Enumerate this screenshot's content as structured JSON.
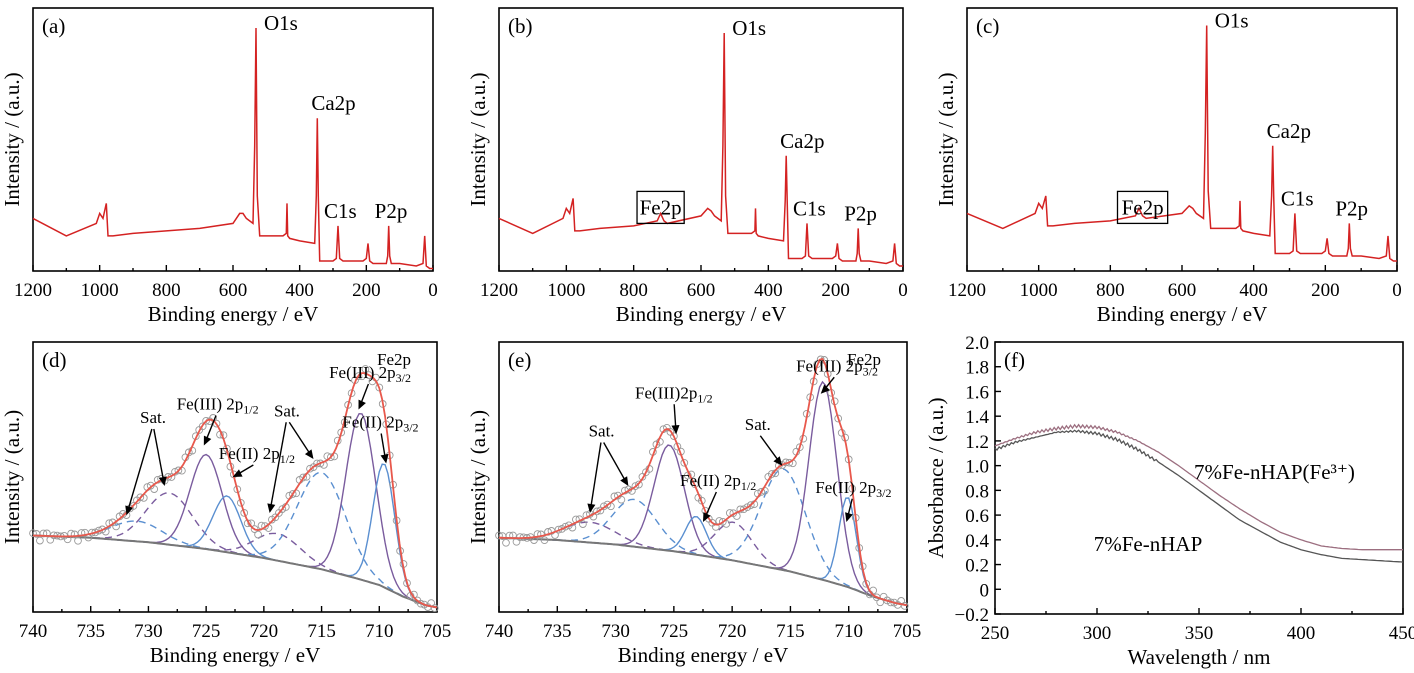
{
  "colors": {
    "survey": "#d42222",
    "envelope": "#e8584c",
    "background": "#777777",
    "fe3_peak": "#7a5c9e",
    "fe2_peak": "#5a8fd0",
    "sat_peak": "#7a5c9e",
    "sat_peak_alt": "#5a8fd0",
    "markers": "#999999",
    "uv_fe3": "#9c6f80",
    "uv_plain": "#555555"
  },
  "chart_data": [
    {
      "id": "a",
      "type": "line",
      "panel_label": "(a)",
      "xlabel": "Binding energy / eV",
      "ylabel": "Intensity / (a.u.)",
      "xlim": [
        1200,
        0
      ],
      "xticks": [
        1200,
        1000,
        800,
        600,
        400,
        200,
        0
      ],
      "ylim": [
        0,
        1.05
      ],
      "peaks": [
        {
          "label": "O1s",
          "x": 531,
          "y": 0.97
        },
        {
          "label": "Ca2p",
          "x": 347,
          "y": 0.61
        },
        {
          "label": "C1s",
          "x": 285,
          "y": 0.18
        },
        {
          "label": "P2p",
          "x": 133,
          "y": 0.18
        }
      ],
      "highlight": null,
      "series": [
        {
          "x": [
            1200,
            1100,
            1010,
            1000,
            990,
            980,
            975,
            960,
            900,
            800,
            700,
            600,
            580,
            570,
            560,
            540,
            535,
            531,
            527,
            520,
            450,
            440,
            438,
            436,
            430,
            400,
            355,
            350,
            347,
            344,
            340,
            300,
            290,
            285,
            280,
            270,
            210,
            200,
            195,
            190,
            180,
            140,
            136,
            133,
            130,
            125,
            100,
            50,
            30,
            25,
            20,
            10,
            0
          ],
          "y": [
            0.21,
            0.14,
            0.19,
            0.23,
            0.21,
            0.27,
            0.14,
            0.14,
            0.15,
            0.16,
            0.17,
            0.19,
            0.23,
            0.23,
            0.21,
            0.19,
            0.5,
            0.97,
            0.3,
            0.14,
            0.14,
            0.15,
            0.27,
            0.14,
            0.13,
            0.12,
            0.11,
            0.3,
            0.61,
            0.3,
            0.04,
            0.04,
            0.05,
            0.18,
            0.05,
            0.04,
            0.04,
            0.05,
            0.11,
            0.04,
            0.03,
            0.03,
            0.06,
            0.18,
            0.06,
            0.03,
            0.03,
            0.02,
            0.03,
            0.14,
            0.02,
            0.01,
            0.01
          ]
        }
      ]
    },
    {
      "id": "b",
      "type": "line",
      "panel_label": "(b)",
      "xlabel": "Binding energy / eV",
      "ylabel": "Intensity / (a.u.)",
      "xlim": [
        1200,
        0
      ],
      "xticks": [
        1200,
        1000,
        800,
        600,
        400,
        200,
        0
      ],
      "ylim": [
        0,
        1.05
      ],
      "peaks": [
        {
          "label": "O1s",
          "x": 531,
          "y": 0.95
        },
        {
          "label": "Ca2p",
          "x": 347,
          "y": 0.46
        },
        {
          "label": "C1s",
          "x": 285,
          "y": 0.19
        },
        {
          "label": "P2p",
          "x": 133,
          "y": 0.17
        }
      ],
      "highlight": {
        "label": "Fe2p",
        "x_range": [
          790,
          650
        ]
      },
      "series": [
        {
          "x": [
            1200,
            1100,
            1010,
            1000,
            990,
            980,
            975,
            960,
            900,
            800,
            730,
            720,
            710,
            700,
            600,
            580,
            570,
            560,
            540,
            535,
            531,
            527,
            520,
            450,
            440,
            438,
            436,
            430,
            400,
            355,
            350,
            347,
            344,
            340,
            300,
            290,
            285,
            280,
            270,
            210,
            200,
            195,
            190,
            180,
            140,
            136,
            133,
            130,
            125,
            100,
            50,
            30,
            25,
            20,
            10,
            0
          ],
          "y": [
            0.21,
            0.15,
            0.21,
            0.25,
            0.23,
            0.29,
            0.16,
            0.16,
            0.17,
            0.18,
            0.2,
            0.23,
            0.2,
            0.19,
            0.22,
            0.25,
            0.24,
            0.22,
            0.2,
            0.5,
            0.95,
            0.3,
            0.15,
            0.15,
            0.16,
            0.25,
            0.15,
            0.14,
            0.13,
            0.12,
            0.28,
            0.46,
            0.28,
            0.05,
            0.05,
            0.06,
            0.19,
            0.06,
            0.05,
            0.05,
            0.06,
            0.11,
            0.05,
            0.04,
            0.04,
            0.07,
            0.17,
            0.07,
            0.04,
            0.04,
            0.03,
            0.04,
            0.11,
            0.03,
            0.02,
            0.02
          ]
        }
      ]
    },
    {
      "id": "c",
      "type": "line",
      "panel_label": "(c)",
      "xlabel": "Binding energy / eV",
      "ylabel": "Intensity / (a.u.)",
      "xlim": [
        1200,
        0
      ],
      "xticks": [
        1200,
        1000,
        800,
        600,
        400,
        200,
        0
      ],
      "ylim": [
        0,
        1.05
      ],
      "peaks": [
        {
          "label": "O1s",
          "x": 531,
          "y": 0.98
        },
        {
          "label": "Ca2p",
          "x": 347,
          "y": 0.5
        },
        {
          "label": "C1s",
          "x": 285,
          "y": 0.23
        },
        {
          "label": "P2p",
          "x": 133,
          "y": 0.19
        }
      ],
      "highlight": {
        "label": "Fe2p",
        "x_range": [
          780,
          640
        ]
      },
      "series": [
        {
          "x": [
            1200,
            1100,
            1010,
            1000,
            990,
            980,
            975,
            960,
            900,
            800,
            730,
            720,
            710,
            700,
            600,
            580,
            570,
            560,
            540,
            535,
            531,
            527,
            520,
            450,
            440,
            438,
            436,
            430,
            400,
            355,
            350,
            347,
            344,
            340,
            300,
            290,
            285,
            280,
            270,
            210,
            200,
            195,
            190,
            180,
            140,
            136,
            133,
            130,
            125,
            100,
            50,
            30,
            25,
            20,
            10,
            0
          ],
          "y": [
            0.23,
            0.17,
            0.23,
            0.27,
            0.25,
            0.3,
            0.18,
            0.18,
            0.19,
            0.2,
            0.22,
            0.25,
            0.22,
            0.21,
            0.23,
            0.26,
            0.25,
            0.23,
            0.21,
            0.55,
            0.98,
            0.32,
            0.17,
            0.17,
            0.18,
            0.28,
            0.17,
            0.16,
            0.15,
            0.14,
            0.3,
            0.5,
            0.3,
            0.07,
            0.07,
            0.08,
            0.23,
            0.08,
            0.07,
            0.07,
            0.08,
            0.13,
            0.07,
            0.06,
            0.06,
            0.09,
            0.19,
            0.09,
            0.06,
            0.06,
            0.05,
            0.06,
            0.14,
            0.05,
            0.04,
            0.04
          ]
        }
      ]
    },
    {
      "id": "d",
      "type": "line",
      "panel_label": "(d)",
      "xlabel": "Binding energy / eV",
      "ylabel": "Intensity / (a.u.)",
      "xlim": [
        740,
        705
      ],
      "xticks": [
        740,
        735,
        730,
        725,
        720,
        715,
        710,
        705
      ],
      "ylim": [
        0,
        1.2
      ],
      "edge_label": "Fe2p",
      "background": [
        [
          740,
          0.34
        ],
        [
          735,
          0.33
        ],
        [
          730,
          0.31
        ],
        [
          725,
          0.28
        ],
        [
          720,
          0.24
        ],
        [
          715,
          0.19
        ],
        [
          712,
          0.15
        ],
        [
          710,
          0.12
        ],
        [
          708,
          0.07
        ],
        [
          706,
          0.03
        ],
        [
          705,
          0.02
        ]
      ],
      "components": [
        {
          "center": 731.0,
          "height": 0.09,
          "width": 2.2,
          "kind": "sat",
          "style": "dashed",
          "color": "sat_peak_alt"
        },
        {
          "center": 728.2,
          "height": 0.23,
          "width": 2.0,
          "kind": "sat",
          "style": "dashed",
          "color": "sat_peak"
        },
        {
          "center": 725.0,
          "height": 0.42,
          "width": 1.4,
          "kind": "fe3",
          "style": "solid",
          "color": "fe3_peak"
        },
        {
          "center": 723.2,
          "height": 0.25,
          "width": 1.2,
          "kind": "fe2",
          "style": "solid",
          "color": "fe2_peak"
        },
        {
          "center": 718.8,
          "height": 0.12,
          "width": 2.0,
          "kind": "sat",
          "style": "dashed",
          "color": "sat_peak"
        },
        {
          "center": 715.0,
          "height": 0.43,
          "width": 2.1,
          "kind": "sat",
          "style": "dashed",
          "color": "sat_peak_alt"
        },
        {
          "center": 711.6,
          "height": 0.74,
          "width": 1.3,
          "kind": "fe3",
          "style": "solid",
          "color": "fe3_peak"
        },
        {
          "center": 709.6,
          "height": 0.55,
          "width": 0.95,
          "kind": "fe2",
          "style": "solid",
          "color": "fe2_peak"
        }
      ],
      "annotations": [
        {
          "text": "Sat.",
          "tx": 729.6,
          "ty": 0.84,
          "ax": 731.9,
          "ay": 0.43
        },
        {
          "text": "Sat.",
          "tx": 729.6,
          "ty": 0.84,
          "ax": 728.6,
          "ay": 0.56
        },
        {
          "text": "Fe(III) 2p",
          "sub": "1/2",
          "tx": 724.0,
          "ty": 0.9,
          "ax": 725.2,
          "ay": 0.74
        },
        {
          "text": "Fe(II) 2p",
          "sub": "1/2",
          "tx": 720.6,
          "ty": 0.68,
          "ax": 722.7,
          "ay": 0.6
        },
        {
          "text": "Sat.",
          "tx": 718.0,
          "ty": 0.87,
          "ax": 719.5,
          "ay": 0.44
        },
        {
          "text": "Sat.",
          "tx": 718.0,
          "ty": 0.87,
          "ax": 715.7,
          "ay": 0.68
        },
        {
          "text": "Fe(III) 2p",
          "sub": "3/2",
          "tx": 710.8,
          "ty": 1.04,
          "ax": 711.8,
          "ay": 0.9
        },
        {
          "text": "Fe(II) 2p",
          "sub": "3/2",
          "tx": 709.9,
          "ty": 0.82,
          "ax": 709.4,
          "ay": 0.66
        }
      ]
    },
    {
      "id": "e",
      "type": "line",
      "panel_label": "(e)",
      "xlabel": "Binding energy / eV",
      "ylabel": "Intensity / (a.u.)",
      "xlim": [
        740,
        705
      ],
      "xticks": [
        740,
        735,
        730,
        725,
        720,
        715,
        710,
        705
      ],
      "ylim": [
        0,
        1.2
      ],
      "edge_label": "Fe2p",
      "background": [
        [
          740,
          0.33
        ],
        [
          735,
          0.32
        ],
        [
          730,
          0.3
        ],
        [
          725,
          0.27
        ],
        [
          720,
          0.23
        ],
        [
          715,
          0.18
        ],
        [
          712,
          0.14
        ],
        [
          710,
          0.11
        ],
        [
          708,
          0.07
        ],
        [
          706,
          0.04
        ],
        [
          705,
          0.03
        ]
      ],
      "components": [
        {
          "center": 732.2,
          "height": 0.09,
          "width": 2.2,
          "kind": "sat",
          "style": "dashed",
          "color": "sat_peak"
        },
        {
          "center": 728.4,
          "height": 0.21,
          "width": 1.9,
          "kind": "sat",
          "style": "dashed",
          "color": "sat_peak_alt"
        },
        {
          "center": 725.4,
          "height": 0.47,
          "width": 1.3,
          "kind": "fe3",
          "style": "solid",
          "color": "fe3_peak"
        },
        {
          "center": 723.1,
          "height": 0.17,
          "width": 0.9,
          "kind": "fe2",
          "style": "solid",
          "color": "fe2_peak"
        },
        {
          "center": 719.9,
          "height": 0.17,
          "width": 1.6,
          "kind": "sat",
          "style": "dashed",
          "color": "sat_peak"
        },
        {
          "center": 715.6,
          "height": 0.45,
          "width": 1.9,
          "kind": "sat",
          "style": "dashed",
          "color": "sat_peak_alt"
        },
        {
          "center": 712.2,
          "height": 0.88,
          "width": 1.2,
          "kind": "fe3",
          "style": "solid",
          "color": "fe3_peak"
        },
        {
          "center": 710.1,
          "height": 0.4,
          "width": 0.75,
          "kind": "fe2",
          "style": "solid",
          "color": "fe2_peak"
        }
      ],
      "annotations": [
        {
          "text": "Sat.",
          "tx": 731.2,
          "ty": 0.78,
          "ax": 732.2,
          "ay": 0.44
        },
        {
          "text": "Sat.",
          "tx": 731.2,
          "ty": 0.78,
          "ax": 728.9,
          "ay": 0.56
        },
        {
          "text": "Fe(III)2p",
          "sub": "1/2",
          "tx": 725.0,
          "ty": 0.95,
          "ax": 724.8,
          "ay": 0.79
        },
        {
          "text": "Fe(II) 2p",
          "sub": "1/2",
          "tx": 721.2,
          "ty": 0.56,
          "ax": 722.5,
          "ay": 0.4
        },
        {
          "text": "Sat.",
          "tx": 717.8,
          "ty": 0.81,
          "ax": 715.7,
          "ay": 0.65
        },
        {
          "text": "Fe(III) 2p",
          "sub": "3/2",
          "tx": 711.0,
          "ty": 1.07,
          "ax": 712.4,
          "ay": 0.97
        },
        {
          "text": "Fe(II) 2p",
          "sub": "3/2",
          "tx": 709.6,
          "ty": 0.53,
          "ax": 710.2,
          "ay": 0.4
        }
      ]
    },
    {
      "id": "f",
      "type": "line",
      "panel_label": "(f)",
      "xlabel": "Wavelength / nm",
      "ylabel": "Absorbance / (a.u.)",
      "xlim": [
        250,
        450
      ],
      "xticks": [
        250,
        300,
        350,
        400,
        450
      ],
      "ylim": [
        -0.2,
        2.0
      ],
      "yticks": [
        -0.2,
        0.0,
        0.2,
        0.4,
        0.6,
        0.8,
        1.0,
        1.2,
        1.4,
        1.6,
        1.8,
        2.0
      ],
      "ytick_labels": [
        "−0.2",
        "0",
        "0.2",
        "0.4",
        "0.6",
        "0.8",
        "1.0",
        "1.2",
        "1.4",
        "1.6",
        "1.8",
        "2.0"
      ],
      "series": [
        {
          "name": "7%Fe-nHAP(Fe³⁺)",
          "label_x": 387,
          "label_y": 0.89,
          "color": "uv_fe3",
          "x": [
            250,
            260,
            270,
            280,
            290,
            300,
            310,
            320,
            330,
            340,
            350,
            360,
            370,
            380,
            390,
            400,
            410,
            420,
            430,
            440,
            450
          ],
          "y": [
            1.16,
            1.22,
            1.27,
            1.3,
            1.32,
            1.31,
            1.27,
            1.2,
            1.11,
            1.0,
            0.88,
            0.76,
            0.65,
            0.55,
            0.46,
            0.4,
            0.35,
            0.33,
            0.32,
            0.32,
            0.32
          ]
        },
        {
          "name": "7%Fe-nHAP",
          "label_x": 325,
          "label_y": 0.31,
          "color": "uv_plain",
          "x": [
            250,
            260,
            270,
            280,
            290,
            300,
            310,
            320,
            330,
            340,
            350,
            360,
            370,
            380,
            390,
            400,
            410,
            420,
            430,
            440,
            450
          ],
          "y": [
            1.13,
            1.19,
            1.23,
            1.27,
            1.28,
            1.26,
            1.21,
            1.13,
            1.03,
            0.92,
            0.8,
            0.68,
            0.56,
            0.47,
            0.38,
            0.32,
            0.28,
            0.25,
            0.24,
            0.23,
            0.22
          ]
        }
      ]
    }
  ]
}
